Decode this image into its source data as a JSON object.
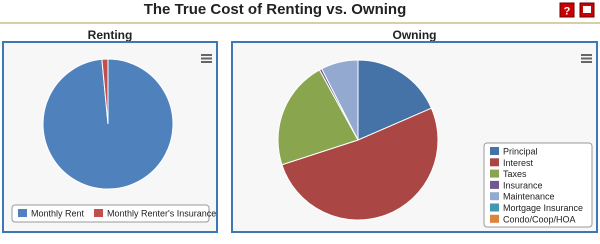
{
  "title": "The True Cost of Renting vs. Owning",
  "chart_data": [
    {
      "type": "pie",
      "title": "Renting",
      "categories": [
        "Monthly Rent",
        "Monthly Renter's Insurance"
      ],
      "values": [
        98.5,
        1.5
      ],
      "colors": [
        "#4f81bd",
        "#c0504d"
      ]
    },
    {
      "type": "pie",
      "title": "Owning",
      "categories": [
        "Principal",
        "Interest",
        "Taxes",
        "Insurance",
        "Maintenance",
        "Mortgage Insurance",
        "Condo/Coop/HOA"
      ],
      "values": [
        18.5,
        51.5,
        22,
        0.5,
        7.5,
        0,
        0
      ],
      "colors": [
        "#4572a7",
        "#aa4643",
        "#89a54e",
        "#71588f",
        "#93a9cf",
        "#4198af",
        "#db843d"
      ]
    }
  ]
}
